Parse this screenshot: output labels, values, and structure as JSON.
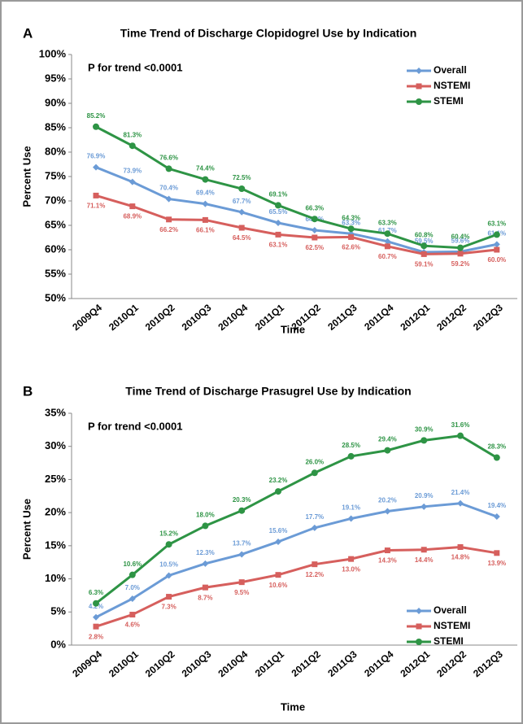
{
  "chart_data": [
    {
      "type": "line",
      "panel": "A",
      "title": "Time Trend of Discharge Clopidogrel Use by Indication",
      "annotation": "P for trend <0.0001",
      "xlabel": "Time",
      "ylabel": "Percent Use",
      "categories": [
        "2009Q4",
        "2010Q1",
        "2010Q2",
        "2010Q3",
        "2010Q4",
        "2011Q1",
        "2011Q2",
        "2011Q3",
        "2011Q4",
        "2012Q1",
        "2012Q2",
        "2012Q3"
      ],
      "ylim": [
        50,
        100
      ],
      "yticks": [
        {
          "value": 50,
          "label": "50%"
        },
        {
          "value": 55,
          "label": "55%"
        },
        {
          "value": 60,
          "label": "60%"
        },
        {
          "value": 65,
          "label": "65%"
        },
        {
          "value": 70,
          "label": "70%"
        },
        {
          "value": 75,
          "label": "75%"
        },
        {
          "value": 80,
          "label": "80%"
        },
        {
          "value": 85,
          "label": "85%"
        },
        {
          "value": 90,
          "label": "90%"
        },
        {
          "value": 95,
          "label": "95%"
        },
        {
          "value": 100,
          "label": "100%"
        }
      ],
      "legend": "top-right",
      "series": [
        {
          "name": "Overall",
          "color": "#6b9bd6",
          "marker": "diamond",
          "values": [
            76.9,
            73.9,
            70.4,
            69.4,
            67.7,
            65.5,
            64.0,
            63.3,
            61.7,
            59.5,
            59.6,
            61.1
          ],
          "value_labels": [
            "76.9%",
            "73.9%",
            "70.4%",
            "69.4%",
            "67.7%",
            "65.5%",
            "64.0%",
            "63.3%",
            "61.7%",
            "59.5%",
            "59.6%",
            "61.1%"
          ]
        },
        {
          "name": "NSTEMI",
          "color": "#d65f5d",
          "marker": "square",
          "values": [
            71.1,
            68.9,
            66.2,
            66.1,
            64.5,
            63.1,
            62.5,
            62.6,
            60.7,
            59.1,
            59.2,
            60.0
          ],
          "value_labels": [
            "71.1%",
            "68.9%",
            "66.2%",
            "66.1%",
            "64.5%",
            "63.1%",
            "62.5%",
            "62.6%",
            "60.7%",
            "59.1%",
            "59.2%",
            "60.0%"
          ]
        },
        {
          "name": "STEMI",
          "color": "#2e9445",
          "marker": "circle",
          "values": [
            85.2,
            81.3,
            76.6,
            74.4,
            72.5,
            69.1,
            66.3,
            64.3,
            63.3,
            60.8,
            60.4,
            63.1
          ],
          "value_labels": [
            "85.2%",
            "81.3%",
            "76.6%",
            "74.4%",
            "72.5%",
            "69.1%",
            "66.3%",
            "64.3%",
            "63.3%",
            "60.8%",
            "60.4%",
            "63.1%"
          ]
        }
      ]
    },
    {
      "type": "line",
      "panel": "B",
      "title": "Time Trend of Discharge Prasugrel Use by Indication",
      "annotation": "P for trend <0.0001",
      "xlabel": "Time",
      "ylabel": "Percent Use",
      "categories": [
        "2009Q4",
        "2010Q1",
        "2010Q2",
        "2010Q3",
        "2010Q4",
        "2011Q1",
        "2011Q2",
        "2011Q3",
        "2011Q4",
        "2012Q1",
        "2012Q2",
        "2012Q3"
      ],
      "ylim": [
        0,
        35
      ],
      "yticks": [
        {
          "value": 0,
          "label": "0%"
        },
        {
          "value": 5,
          "label": "5%"
        },
        {
          "value": 10,
          "label": "10%"
        },
        {
          "value": 15,
          "label": "15%"
        },
        {
          "value": 20,
          "label": "20%"
        },
        {
          "value": 25,
          "label": "25%"
        },
        {
          "value": 30,
          "label": "30%"
        },
        {
          "value": 35,
          "label": "35%"
        }
      ],
      "legend": "bottom-right",
      "series": [
        {
          "name": "Overall",
          "color": "#6b9bd6",
          "marker": "diamond",
          "values": [
            4.2,
            7.0,
            10.5,
            12.3,
            13.7,
            15.6,
            17.7,
            19.1,
            20.2,
            20.9,
            21.4,
            19.4
          ],
          "value_labels": [
            "4.2%",
            "7.0%",
            "10.5%",
            "12.3%",
            "13.7%",
            "15.6%",
            "17.7%",
            "19.1%",
            "20.2%",
            "20.9%",
            "21.4%",
            "19.4%"
          ]
        },
        {
          "name": "NSTEMI",
          "color": "#d65f5d",
          "marker": "square",
          "values": [
            2.8,
            4.6,
            7.3,
            8.7,
            9.5,
            10.6,
            12.2,
            13.0,
            14.3,
            14.4,
            14.8,
            13.9
          ],
          "value_labels": [
            "2.8%",
            "4.6%",
            "7.3%",
            "8.7%",
            "9.5%",
            "10.6%",
            "12.2%",
            "13.0%",
            "14.3%",
            "14.4%",
            "14.8%",
            "13.9%"
          ]
        },
        {
          "name": "STEMI",
          "color": "#2e9445",
          "marker": "circle",
          "values": [
            6.3,
            10.6,
            15.2,
            18.0,
            20.3,
            23.2,
            26.0,
            28.5,
            29.4,
            30.9,
            31.6,
            28.3
          ],
          "value_labels": [
            "6.3%",
            "10.6%",
            "15.2%",
            "18.0%",
            "20.3%",
            "23.2%",
            "26.0%",
            "28.5%",
            "29.4%",
            "30.9%",
            "31.6%",
            "28.3%"
          ]
        }
      ]
    }
  ]
}
